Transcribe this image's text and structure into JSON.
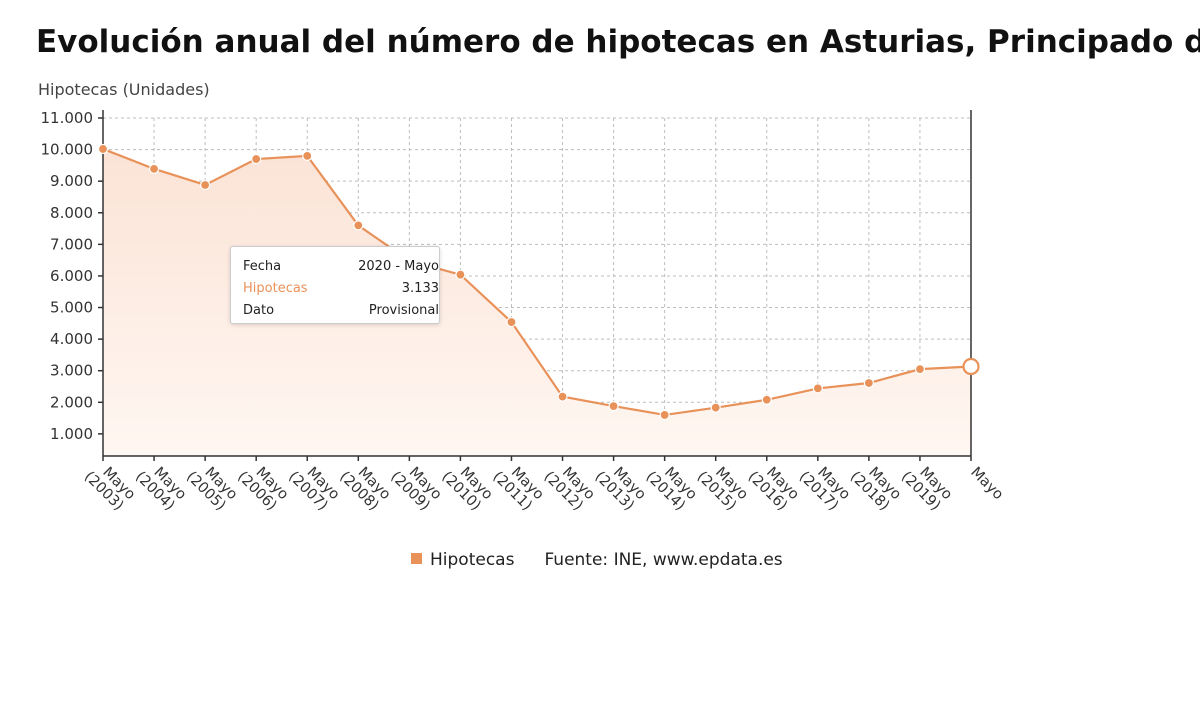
{
  "title": "Evolución anual del número de hipotecas en Asturias, Principado de",
  "y_axis_label": "Hipotecas (Unidades)",
  "tooltip": {
    "rows": [
      {
        "key": "Fecha",
        "value": "2020 - Mayo"
      },
      {
        "key": "Hipotecas",
        "value": "3.133"
      },
      {
        "key": "Dato",
        "value": "Provisional"
      }
    ]
  },
  "legend": {
    "series_label": "Hipotecas",
    "source": "Fuente: INE, www.epdata.es"
  },
  "colors": {
    "series": "#e8925a",
    "area_top": "#fbe3d6",
    "area_bottom": "#fff7f2"
  },
  "chart_data": {
    "type": "area",
    "x_categories": [
      "Mayo\n(2003)",
      "Mayo\n(2004)",
      "Mayo\n(2005)",
      "Mayo\n(2006)",
      "Mayo\n(2007)",
      "Mayo\n(2008)",
      "Mayo\n(2009)",
      "Mayo\n(2010)",
      "Mayo\n(2011)",
      "Mayo\n(2012)",
      "Mayo\n(2013)",
      "Mayo\n(2014)",
      "Mayo\n(2015)",
      "Mayo\n(2016)",
      "Mayo\n(2017)",
      "Mayo\n(2018)",
      "Mayo\n(2019)",
      "Mayo"
    ],
    "series": [
      {
        "name": "Hipotecas",
        "values": [
          10020,
          9390,
          8880,
          9700,
          9800,
          7600,
          6480,
          6040,
          4540,
          2180,
          1880,
          1600,
          1830,
          2080,
          2440,
          2610,
          3050,
          3133
        ]
      }
    ],
    "ylabel": "Hipotecas (Unidades)",
    "ylim": [
      300,
      11000
    ],
    "y_ticks": [
      1000,
      2000,
      3000,
      4000,
      5000,
      6000,
      7000,
      8000,
      9000,
      10000,
      11000
    ],
    "y_tick_labels": [
      "1.000",
      "2.000",
      "3.000",
      "4.000",
      "5.000",
      "6.000",
      "7.000",
      "8.000",
      "9.000",
      "10.000",
      "11.000"
    ],
    "grid": true,
    "highlighted_point": {
      "category": "2020 - Mayo",
      "value": 3133,
      "status": "Provisional"
    },
    "legend_position": "bottom"
  }
}
